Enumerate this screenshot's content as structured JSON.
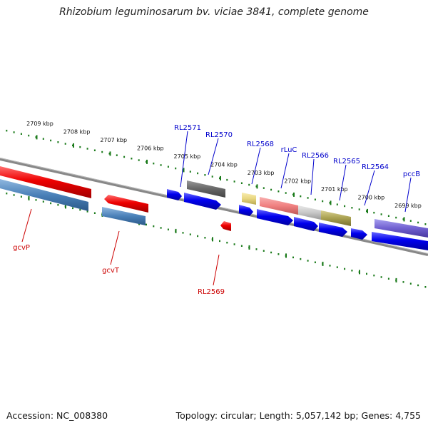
{
  "title": "Rhizobium leguminosarum bv. viciae 3841, complete genome",
  "footer": {
    "accession": "Accession: NC_008380",
    "summary": "Topology: circular; Length: 5,057,142 bp; Genes: 4,755"
  },
  "ticks": [
    "2709 kbp",
    "2708 kbp",
    "2707 kbp",
    "2706 kbp",
    "2705 kbp",
    "2704 kbp",
    "2703 kbp",
    "2702 kbp",
    "2701 kbp",
    "2700 kbp",
    "2699 kbp"
  ],
  "colors": {
    "forward_gene": "#0000ee",
    "reverse_gene": "#ee0000",
    "backbone": "#777777",
    "tick": "#1a7a1a",
    "cog_steelblue": "#4a80b8",
    "cog_gray": "#666666",
    "cog_khaki": "#e0d070",
    "cog_pink": "#f08080",
    "cog_lightgray": "#c8c8c8",
    "cog_olive": "#a8a050",
    "cog_purple": "#7060d0"
  },
  "labels_forward": [
    "RL2571",
    "RL2570",
    "RL2568",
    "rLuC",
    "RL2566",
    "RL2565",
    "RL2564",
    "pccB"
  ],
  "labels_reverse": [
    "gcvP",
    "gcvT",
    "RL2569"
  ]
}
